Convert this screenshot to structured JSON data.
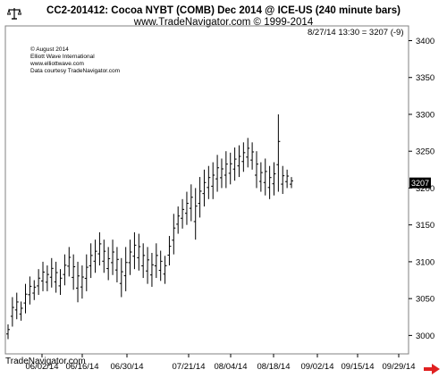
{
  "header": {
    "title": "CC2-201412:  Cocoa NYBT (COMB) Dec 2014 @ ICE-US  (240 minute bars)",
    "subtitle": "www.TradeNavigator.com © 1999-2014"
  },
  "stamp": [
    "© August 2014",
    "Elliott Wave International",
    "www.elliottwave.com",
    "Data courtesy TradeNavigator.com"
  ],
  "readout": "8/27/14 13:30 = 3207 (-9)",
  "brand": "TradeNavigator.com",
  "icons": {
    "top_left": "balance-scale-icon",
    "nav": "right-arrow-icon"
  },
  "colors": {
    "bars": "#000000",
    "last_tag_bg": "#000000",
    "last_tag_text": "#ffffff",
    "nav_arrow": "#e02020",
    "frame": "#808080"
  },
  "chart_data": {
    "type": "ohlc",
    "title": "CC2-201412:  Cocoa NYBT (COMB) Dec 2014 @ ICE-US  (240 minute bars)",
    "y_axis_side": "right",
    "ylim": [
      2975,
      3420
    ],
    "y_ticks": [
      3000,
      3050,
      3100,
      3150,
      3200,
      3250,
      3300,
      3350,
      3400
    ],
    "x_ticks": [
      "06/02/14",
      "06/16/14",
      "06/30/14",
      "07/21/14",
      "08/04/14",
      "08/18/14",
      "09/02/14",
      "09/15/14",
      "09/29/14"
    ],
    "last_value": 3207,
    "series": [
      {
        "date": "05/27",
        "high": 3015,
        "low": 2995
      },
      {
        "date": "05/28",
        "high": 3052,
        "low": 3012
      },
      {
        "date": "05/29",
        "high": 3058,
        "low": 3022
      },
      {
        "date": "05/30",
        "high": 3046,
        "low": 3020
      },
      {
        "date": "06/02",
        "high": 3070,
        "low": 3030
      },
      {
        "date": "06/03",
        "high": 3080,
        "low": 3042
      },
      {
        "date": "06/04",
        "high": 3075,
        "low": 3048
      },
      {
        "date": "06/05",
        "high": 3090,
        "low": 3055
      },
      {
        "date": "06/06",
        "high": 3100,
        "low": 3060
      },
      {
        "date": "06/09",
        "high": 3095,
        "low": 3060
      },
      {
        "date": "06/10",
        "high": 3105,
        "low": 3065
      },
      {
        "date": "06/11",
        "high": 3100,
        "low": 3058
      },
      {
        "date": "06/12",
        "high": 3090,
        "low": 3055
      },
      {
        "date": "06/13",
        "high": 3110,
        "low": 3068
      },
      {
        "date": "06/16",
        "high": 3120,
        "low": 3080
      },
      {
        "date": "06/17",
        "high": 3110,
        "low": 3062
      },
      {
        "date": "06/18",
        "high": 3100,
        "low": 3045
      },
      {
        "date": "06/19",
        "high": 3095,
        "low": 3050
      },
      {
        "date": "06/20",
        "high": 3110,
        "low": 3060
      },
      {
        "date": "06/23",
        "high": 3125,
        "low": 3078
      },
      {
        "date": "06/24",
        "high": 3130,
        "low": 3085
      },
      {
        "date": "06/25",
        "high": 3140,
        "low": 3095
      },
      {
        "date": "06/26",
        "high": 3130,
        "low": 3085
      },
      {
        "date": "06/27",
        "high": 3120,
        "low": 3075
      },
      {
        "date": "06/30",
        "high": 3130,
        "low": 3082
      },
      {
        "date": "07/01",
        "high": 3120,
        "low": 3072
      },
      {
        "date": "07/02",
        "high": 3105,
        "low": 3052
      },
      {
        "date": "07/03",
        "high": 3120,
        "low": 3060
      },
      {
        "date": "07/07",
        "high": 3130,
        "low": 3082
      },
      {
        "date": "07/08",
        "high": 3140,
        "low": 3090
      },
      {
        "date": "07/09",
        "high": 3138,
        "low": 3088
      },
      {
        "date": "07/10",
        "high": 3125,
        "low": 3078
      },
      {
        "date": "07/11",
        "high": 3120,
        "low": 3070
      },
      {
        "date": "07/14",
        "high": 3112,
        "low": 3066
      },
      {
        "date": "07/15",
        "high": 3125,
        "low": 3078
      },
      {
        "date": "07/16",
        "high": 3115,
        "low": 3074
      },
      {
        "date": "07/17",
        "high": 3108,
        "low": 3070
      },
      {
        "date": "07/18",
        "high": 3135,
        "low": 3095
      },
      {
        "date": "07/21",
        "high": 3165,
        "low": 3110
      },
      {
        "date": "07/22",
        "high": 3175,
        "low": 3138
      },
      {
        "date": "07/23",
        "high": 3185,
        "low": 3145
      },
      {
        "date": "07/24",
        "high": 3195,
        "low": 3150
      },
      {
        "date": "07/25",
        "high": 3205,
        "low": 3155
      },
      {
        "date": "07/28",
        "high": 3200,
        "low": 3130
      },
      {
        "date": "07/29",
        "high": 3215,
        "low": 3160
      },
      {
        "date": "07/30",
        "high": 3225,
        "low": 3175
      },
      {
        "date": "07/31",
        "high": 3230,
        "low": 3185
      },
      {
        "date": "08/01",
        "high": 3235,
        "low": 3185
      },
      {
        "date": "08/04",
        "high": 3245,
        "low": 3195
      },
      {
        "date": "08/05",
        "high": 3240,
        "low": 3200
      },
      {
        "date": "08/06",
        "high": 3250,
        "low": 3200
      },
      {
        "date": "08/07",
        "high": 3248,
        "low": 3205
      },
      {
        "date": "08/08",
        "high": 3255,
        "low": 3210
      },
      {
        "date": "08/11",
        "high": 3258,
        "low": 3215
      },
      {
        "date": "08/12",
        "high": 3262,
        "low": 3222
      },
      {
        "date": "08/13",
        "high": 3268,
        "low": 3228
      },
      {
        "date": "08/14",
        "high": 3262,
        "low": 3225
      },
      {
        "date": "08/15",
        "high": 3250,
        "low": 3200
      },
      {
        "date": "08/18",
        "high": 3235,
        "low": 3195
      },
      {
        "date": "08/19",
        "high": 3240,
        "low": 3190
      },
      {
        "date": "08/20",
        "high": 3230,
        "low": 3185
      },
      {
        "date": "08/21",
        "high": 3235,
        "low": 3190
      },
      {
        "date": "08/22",
        "high": 3300,
        "low": 3195
      },
      {
        "date": "08/25",
        "high": 3230,
        "low": 3192
      },
      {
        "date": "08/26",
        "high": 3225,
        "low": 3200
      },
      {
        "date": "08/27",
        "high": 3215,
        "low": 3200
      }
    ]
  }
}
